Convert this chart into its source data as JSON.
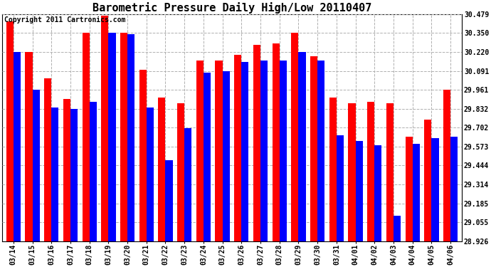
{
  "title": "Barometric Pressure Daily High/Low 20110407",
  "copyright_text": "Copyright 2011 Cartronics.com",
  "categories": [
    "03/14",
    "03/15",
    "03/16",
    "03/17",
    "03/18",
    "03/19",
    "03/20",
    "03/21",
    "03/22",
    "03/23",
    "03/24",
    "03/25",
    "03/26",
    "03/27",
    "03/28",
    "03/29",
    "03/30",
    "03/31",
    "04/01",
    "04/02",
    "04/03",
    "04/04",
    "04/05",
    "04/06"
  ],
  "highs": [
    30.43,
    30.22,
    30.04,
    29.9,
    30.35,
    30.47,
    30.35,
    30.1,
    29.91,
    29.87,
    30.16,
    30.16,
    30.2,
    30.27,
    30.28,
    30.35,
    30.19,
    29.91,
    29.87,
    29.88,
    29.87,
    29.64,
    29.76,
    29.96
  ],
  "lows": [
    30.22,
    29.96,
    29.84,
    29.83,
    29.88,
    30.35,
    30.34,
    29.84,
    29.48,
    29.7,
    30.08,
    30.09,
    30.15,
    30.16,
    30.16,
    30.22,
    30.16,
    29.65,
    29.61,
    29.58,
    29.1,
    29.59,
    29.63,
    29.64
  ],
  "high_color": "#ff0000",
  "low_color": "#0000ff",
  "bg_color": "#ffffff",
  "grid_color": "#b0b0b0",
  "yticks": [
    28.926,
    29.055,
    29.185,
    29.314,
    29.444,
    29.573,
    29.702,
    29.832,
    29.961,
    30.091,
    30.22,
    30.35,
    30.479
  ],
  "ymin": 28.926,
  "ymax": 30.479,
  "bar_width": 0.38,
  "title_fontsize": 11,
  "tick_fontsize": 7,
  "copyright_fontsize": 7
}
